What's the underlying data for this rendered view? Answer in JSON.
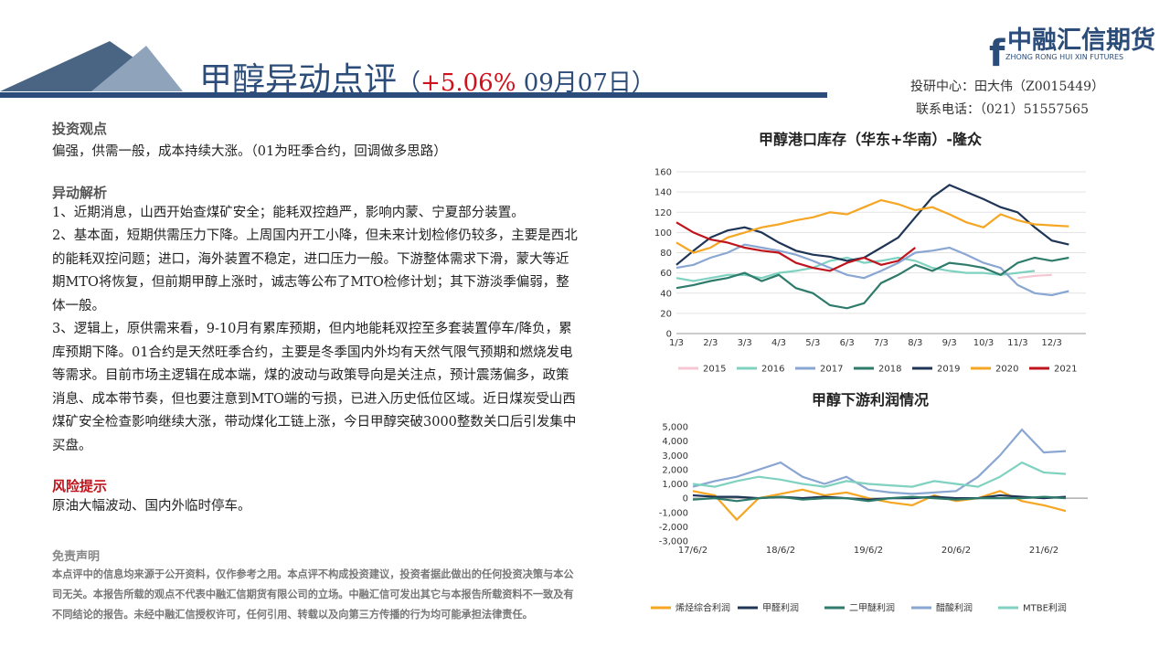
{
  "header": {
    "title": "甲醇异动点评",
    "open": "（",
    "change": "+5.06%",
    "date": "09月07日",
    "close": "）",
    "logo_name": "中融汇信期货",
    "logo_en": "ZHONG RONG HUI XIN FUTURES",
    "analyst": "投研中心：田大伟（Z0015449）",
    "phone": "联系电话：（021）51557565"
  },
  "sections": [
    {
      "heading": "投资观点",
      "paragraphs": [
        "偏强，供需一般，成本持续大涨。（01为旺季合约，回调做多思路）"
      ]
    },
    {
      "heading": "异动解析",
      "paragraphs": [
        "1、近期消息，山西开始查煤矿安全；能耗双控趋严，影响内蒙、宁夏部分装置。",
        "2、基本面，短期供需压力下降。上周国内开工小降，但未来计划检修仍较多，主要是西北的能耗双控问题；进口，海外装置不稳定，进口压力一般。下游整体需求下滑，蒙大等近期MTO将恢复，但前期甲醇上涨时，诚志等公布了MTO检修计划；其下游淡季偏弱，整体一般。",
        "3、逻辑上，原供需来看，9-10月有累库预期，但内地能耗双控至多套装置停车/降负，累库预期下降。01合约是天然旺季合约，主要是冬季国内外均有天然气限气预期和燃烧发电等需求。目前市场主逻辑在成本端，煤的波动与政策导向是关注点，预计震荡偏多，政策消息、成本带节奏，但也要注意到MTO端的亏损，已进入历史低位区域。近日煤炭受山西煤矿安全检查影响继续大涨，带动煤化工链上涨，今日甲醇突破3000整数关口后引发集中买盘。"
      ]
    },
    {
      "heading": "风险提示",
      "paragraphs": [
        "原油大幅波动、国内外临时停车。"
      ]
    }
  ],
  "disclaimer": {
    "heading": "免责声明",
    "text": "本点评中的信息均来源于公开资料，仅作参考之用。本点评不构成投资建议，投资者据此做出的任何投资决策与本公司无关。本报告所载的观点不代表中融汇信期货有限公司的立场。中融汇信可发出其它与本报告所载资料不一致及有不同结论的报告。未经中融汇信授权许可，任何引用、转载以及向第三方传播的行为均可能承担法律责任。"
  },
  "chart_data": [
    {
      "type": "line",
      "title": "甲醇港口库存（华东+华南）-隆众",
      "categories": [
        "1/3",
        null,
        "2/3",
        null,
        "3/3",
        null,
        "4/3",
        null,
        "5/3",
        null,
        "6/3",
        null,
        "7/3",
        null,
        "8/3",
        null,
        "9/3",
        null,
        "10/3",
        null,
        "11/3",
        null,
        "12/3",
        null
      ],
      "ylim": [
        0,
        160
      ],
      "yticks": [
        0,
        20,
        40,
        60,
        80,
        100,
        120,
        140,
        160
      ],
      "grid": true,
      "series": [
        {
          "name": "2015",
          "color": "#f4c7d3",
          "values": [
            null,
            null,
            null,
            null,
            null,
            null,
            null,
            null,
            null,
            null,
            null,
            null,
            null,
            null,
            null,
            null,
            null,
            null,
            null,
            null,
            55,
            57,
            58,
            null
          ]
        },
        {
          "name": "2016",
          "color": "#7fd1c0",
          "values": [
            55,
            52,
            55,
            58,
            58,
            55,
            60,
            62,
            65,
            72,
            75,
            70,
            72,
            75,
            72,
            65,
            62,
            60,
            60,
            58,
            60,
            62,
            null,
            null
          ]
        },
        {
          "name": "2017",
          "color": "#8aa6d2",
          "values": [
            65,
            68,
            75,
            80,
            88,
            85,
            82,
            78,
            72,
            65,
            58,
            55,
            62,
            70,
            80,
            82,
            85,
            78,
            70,
            65,
            48,
            40,
            38,
            42
          ]
        },
        {
          "name": "2018",
          "color": "#2e7b6b",
          "values": [
            45,
            48,
            52,
            55,
            60,
            52,
            58,
            45,
            40,
            28,
            25,
            30,
            50,
            58,
            68,
            62,
            70,
            68,
            65,
            58,
            70,
            75,
            72,
            75
          ]
        },
        {
          "name": "2019",
          "color": "#1f3556",
          "values": [
            68,
            82,
            95,
            102,
            105,
            100,
            90,
            82,
            78,
            76,
            72,
            75,
            85,
            95,
            115,
            135,
            147,
            140,
            133,
            125,
            120,
            105,
            92,
            88
          ]
        },
        {
          "name": "2020",
          "color": "#f5a623",
          "values": [
            90,
            80,
            85,
            95,
            100,
            105,
            108,
            112,
            115,
            120,
            118,
            125,
            132,
            128,
            122,
            125,
            118,
            110,
            105,
            118,
            112,
            108,
            107,
            106
          ]
        },
        {
          "name": "2021",
          "color": "#c0141c",
          "values": [
            110,
            100,
            93,
            90,
            85,
            82,
            80,
            70,
            65,
            62,
            70,
            75,
            68,
            72,
            85,
            null,
            null,
            null,
            null,
            null,
            null,
            null,
            null,
            null
          ]
        }
      ]
    },
    {
      "type": "line",
      "title": "甲醇下游利润情况",
      "categories": [
        "17/6/2",
        null,
        null,
        null,
        "18/6/2",
        null,
        null,
        null,
        "19/6/2",
        null,
        null,
        null,
        "20/6/2",
        null,
        null,
        null,
        "21/6/2",
        null
      ],
      "ylim": [
        -3000,
        5000
      ],
      "yticks": [
        {
          "value": -3000,
          "label": "-3,000"
        },
        {
          "value": -2000,
          "label": "-2,000"
        },
        {
          "value": -1000,
          "label": "-1,000"
        },
        0,
        {
          "value": 1000,
          "label": "1,000"
        },
        {
          "value": 2000,
          "label": "2,000"
        },
        {
          "value": 3000,
          "label": "3,000"
        },
        {
          "value": 4000,
          "label": "4,000"
        },
        {
          "value": 5000,
          "label": "5,000"
        }
      ],
      "grid": false,
      "series": [
        {
          "name": "烯烃综合利润",
          "color": "#f5a623",
          "values": [
            500,
            200,
            -1500,
            0,
            300,
            600,
            200,
            400,
            0,
            -300,
            -500,
            200,
            -200,
            0,
            500,
            -200,
            -500,
            -900
          ]
        },
        {
          "name": "甲醛利润",
          "color": "#1f3556",
          "values": [
            200,
            100,
            100,
            0,
            100,
            0,
            100,
            0,
            -100,
            0,
            0,
            100,
            0,
            0,
            200,
            100,
            0,
            100
          ]
        },
        {
          "name": "二甲醚利润",
          "color": "#2e7b6b",
          "values": [
            -100,
            0,
            -200,
            0,
            100,
            -100,
            0,
            0,
            -200,
            0,
            100,
            0,
            -100,
            0,
            0,
            0,
            100,
            0
          ]
        },
        {
          "name": "醋酸利润",
          "color": "#8aa6d2",
          "values": [
            800,
            1200,
            1500,
            2000,
            2500,
            1500,
            1000,
            1500,
            600,
            400,
            300,
            400,
            500,
            1500,
            3000,
            4800,
            3200,
            3300
          ]
        },
        {
          "name": "MTBE利润",
          "color": "#7fd1c0",
          "values": [
            1000,
            800,
            1200,
            1500,
            1300,
            1000,
            800,
            1200,
            1000,
            900,
            800,
            1200,
            1000,
            800,
            1500,
            2500,
            1800,
            1700
          ]
        }
      ]
    }
  ]
}
